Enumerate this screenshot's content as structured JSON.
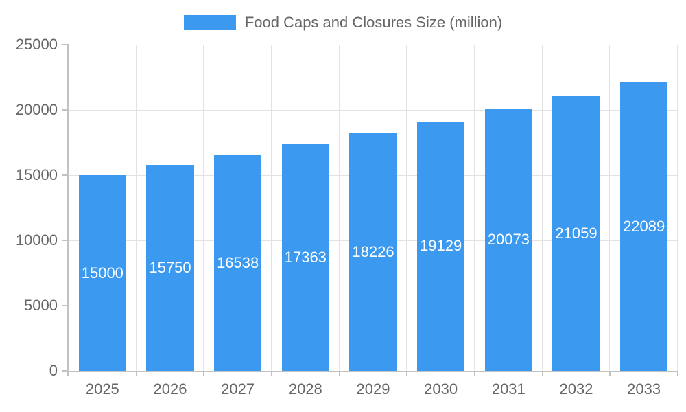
{
  "chart_data": {
    "type": "bar",
    "title": "Food Caps and Closures Size (million)",
    "categories": [
      "2025",
      "2026",
      "2027",
      "2028",
      "2029",
      "2030",
      "2031",
      "2032",
      "2033"
    ],
    "values": [
      15000,
      15750,
      16538,
      17363,
      18226,
      19129,
      20073,
      21059,
      22089
    ],
    "xlabel": "",
    "ylabel": "",
    "ylim": [
      0,
      25000
    ],
    "yticks": [
      0,
      5000,
      10000,
      15000,
      20000,
      25000
    ],
    "grid": true,
    "legend_position": "top-center",
    "bar_labels_inside": true,
    "colors": {
      "bar": "#3B99F0",
      "bar_label_text": "#ffffff",
      "axis_text": "#666666",
      "grid_line": "#e2e2e2",
      "axis_line": "#c2c2c2"
    }
  }
}
